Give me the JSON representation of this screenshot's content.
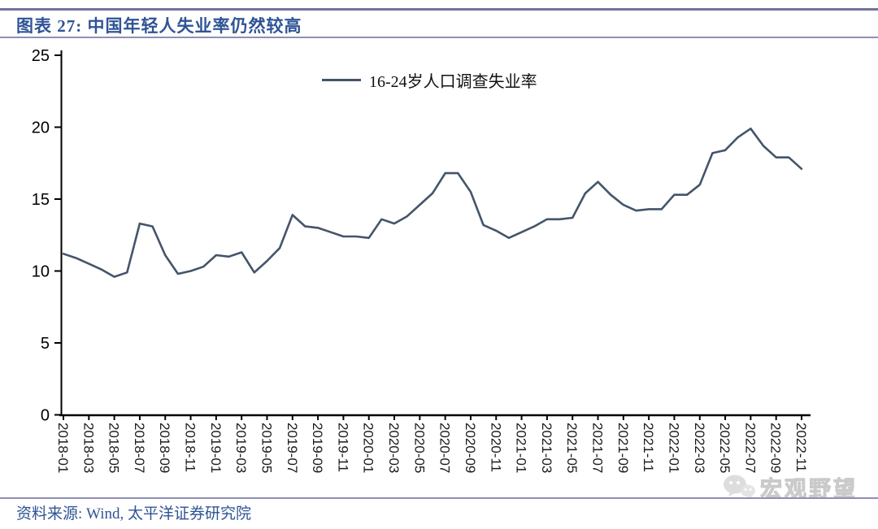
{
  "header": {
    "title": "图表 27: 中国年轻人失业率仍然较高"
  },
  "footer": {
    "source": "资料来源: Wind, 太平洋证券研究院"
  },
  "watermark": {
    "text": "宏观野望",
    "icon": "wechat-icon"
  },
  "chart_data": {
    "type": "line",
    "title": "图表 27: 中国年轻人失业率仍然较高",
    "legend": "16-24岁人口调查失业率",
    "xlabel": "",
    "ylabel": "",
    "ylim": [
      0,
      25
    ],
    "yticks": [
      0,
      5,
      10,
      15,
      20,
      25
    ],
    "x_label_step": 2,
    "grid": false,
    "legend_position": "top-center",
    "line_color": "#44546A",
    "axis_color": "#000000",
    "x": [
      "2018-01",
      "2018-02",
      "2018-03",
      "2018-04",
      "2018-05",
      "2018-06",
      "2018-07",
      "2018-08",
      "2018-09",
      "2018-10",
      "2018-11",
      "2018-12",
      "2019-01",
      "2019-02",
      "2019-03",
      "2019-04",
      "2019-05",
      "2019-06",
      "2019-07",
      "2019-08",
      "2019-09",
      "2019-10",
      "2019-11",
      "2019-12",
      "2020-01",
      "2020-02",
      "2020-03",
      "2020-04",
      "2020-05",
      "2020-06",
      "2020-07",
      "2020-08",
      "2020-09",
      "2020-10",
      "2020-11",
      "2020-12",
      "2021-01",
      "2021-02",
      "2021-03",
      "2021-04",
      "2021-05",
      "2021-06",
      "2021-07",
      "2021-08",
      "2021-09",
      "2021-10",
      "2021-11",
      "2021-12",
      "2022-01",
      "2022-02",
      "2022-03",
      "2022-04",
      "2022-05",
      "2022-06",
      "2022-07",
      "2022-08",
      "2022-09",
      "2022-10",
      "2022-11"
    ],
    "values": [
      11.2,
      10.9,
      10.5,
      10.1,
      9.6,
      9.9,
      13.3,
      13.1,
      11.1,
      9.8,
      10.0,
      10.3,
      11.1,
      11.0,
      11.3,
      9.9,
      10.7,
      11.6,
      13.9,
      13.1,
      13.0,
      12.7,
      12.4,
      12.4,
      12.3,
      13.6,
      13.3,
      13.8,
      14.6,
      15.4,
      16.8,
      16.8,
      15.5,
      13.2,
      12.8,
      12.3,
      12.7,
      13.1,
      13.6,
      13.6,
      13.7,
      15.4,
      16.2,
      15.3,
      14.6,
      14.2,
      14.3,
      14.3,
      15.3,
      15.3,
      16.0,
      18.2,
      18.4,
      19.3,
      19.9,
      18.7,
      17.9,
      17.9,
      17.1
    ]
  }
}
